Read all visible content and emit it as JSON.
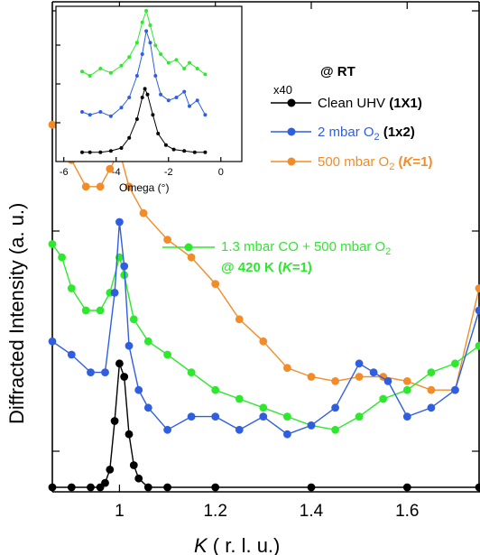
{
  "chart_data": [
    {
      "type": "scatter",
      "role": "main",
      "title": "",
      "xlabel_italic": "K",
      "xlabel_rest": " ( r. l. u.)",
      "ylabel": "Diffracted Intensity  (a. u.)",
      "xlim": [
        0.86,
        1.75
      ],
      "x_ticks": [
        1,
        1.2,
        1.4,
        1.6
      ],
      "x_tick_labels": [
        "1",
        "1.2",
        "1.4",
        "1.6"
      ],
      "y_tick_labels_shown": false,
      "annotation": "@ RT",
      "series": [
        {
          "name": "Clean UHV",
          "label_bold": "(1X1)",
          "multiplier": "x40",
          "color": "#000000",
          "points": [
            [
              0.86,
              0.0
            ],
            [
              0.9,
              0.0
            ],
            [
              0.94,
              0.0
            ],
            [
              0.96,
              0.0
            ],
            [
              0.97,
              0.01
            ],
            [
              0.98,
              0.04
            ],
            [
              0.99,
              0.15
            ],
            [
              1.0,
              0.28
            ],
            [
              1.01,
              0.25
            ],
            [
              1.02,
              0.12
            ],
            [
              1.03,
              0.05
            ],
            [
              1.04,
              0.02
            ],
            [
              1.06,
              0.0
            ],
            [
              1.1,
              0.0
            ],
            [
              1.2,
              0.0
            ],
            [
              1.4,
              0.0
            ],
            [
              1.6,
              0.0
            ],
            [
              1.75,
              0.0
            ]
          ]
        },
        {
          "name": "2 mbar O",
          "name_sub": "2",
          "label_bold": "(1x2)",
          "color": "#2f5fe0",
          "points": [
            [
              0.86,
              0.33
            ],
            [
              0.9,
              0.3
            ],
            [
              0.94,
              0.26
            ],
            [
              0.97,
              0.26
            ],
            [
              0.99,
              0.44
            ],
            [
              1.0,
              0.6
            ],
            [
              1.01,
              0.5
            ],
            [
              1.02,
              0.32
            ],
            [
              1.04,
              0.22
            ],
            [
              1.06,
              0.18
            ],
            [
              1.1,
              0.13
            ],
            [
              1.15,
              0.16
            ],
            [
              1.2,
              0.16
            ],
            [
              1.25,
              0.13
            ],
            [
              1.3,
              0.16
            ],
            [
              1.35,
              0.12
            ],
            [
              1.4,
              0.14
            ],
            [
              1.45,
              0.18
            ],
            [
              1.5,
              0.28
            ],
            [
              1.53,
              0.26
            ],
            [
              1.56,
              0.24
            ],
            [
              1.6,
              0.16
            ],
            [
              1.65,
              0.18
            ],
            [
              1.7,
              0.22
            ],
            [
              1.75,
              0.4
            ]
          ]
        },
        {
          "name": "500 mbar O",
          "name_sub": "2",
          "label_bold_prefix": "(",
          "label_bold_italic": "K",
          "label_bold_suffix": "=1)",
          "color": "#f28c28",
          "points": [
            [
              0.86,
              0.82
            ],
            [
              0.88,
              0.8
            ],
            [
              0.9,
              0.74
            ],
            [
              0.93,
              0.68
            ],
            [
              0.96,
              0.68
            ],
            [
              0.98,
              0.72
            ],
            [
              1.0,
              0.76
            ],
            [
              1.02,
              0.68
            ],
            [
              1.05,
              0.62
            ],
            [
              1.1,
              0.56
            ],
            [
              1.15,
              0.52
            ],
            [
              1.2,
              0.46
            ],
            [
              1.25,
              0.38
            ],
            [
              1.3,
              0.33
            ],
            [
              1.35,
              0.27
            ],
            [
              1.4,
              0.25
            ],
            [
              1.45,
              0.24
            ],
            [
              1.5,
              0.25
            ],
            [
              1.55,
              0.25
            ],
            [
              1.6,
              0.24
            ],
            [
              1.65,
              0.22
            ],
            [
              1.7,
              0.22
            ],
            [
              1.75,
              0.45
            ]
          ]
        },
        {
          "name": "1.3  mbar CO + 500 mbar O",
          "name_sub": "2",
          "label_line2_prefix": "@ 420 K (",
          "label_line2_italic": "K",
          "label_line2_suffix": "=1)",
          "color": "#2ee82e",
          "points": [
            [
              0.86,
              0.55
            ],
            [
              0.88,
              0.52
            ],
            [
              0.9,
              0.45
            ],
            [
              0.93,
              0.4
            ],
            [
              0.96,
              0.4
            ],
            [
              0.98,
              0.44
            ],
            [
              1.0,
              0.52
            ],
            [
              1.01,
              0.48
            ],
            [
              1.03,
              0.38
            ],
            [
              1.06,
              0.33
            ],
            [
              1.1,
              0.3
            ],
            [
              1.15,
              0.26
            ],
            [
              1.2,
              0.22
            ],
            [
              1.25,
              0.2
            ],
            [
              1.3,
              0.18
            ],
            [
              1.35,
              0.16
            ],
            [
              1.4,
              0.14
            ],
            [
              1.45,
              0.13
            ],
            [
              1.5,
              0.16
            ],
            [
              1.55,
              0.2
            ],
            [
              1.6,
              0.22
            ],
            [
              1.65,
              0.26
            ],
            [
              1.7,
              0.28
            ],
            [
              1.75,
              0.32
            ]
          ]
        }
      ]
    },
    {
      "type": "line",
      "role": "inset",
      "xlabel": "Omega (°)",
      "xlim": [
        -6.3,
        0.8
      ],
      "x_ticks": [
        -6,
        -4,
        -2,
        0
      ],
      "x_tick_labels": [
        "-6",
        "-4",
        "-2",
        "0"
      ],
      "y_tick_labels_shown": false,
      "series": [
        {
          "name": "Clean UHV",
          "color": "#000000",
          "points": [
            [
              -5.3,
              0.02
            ],
            [
              -5.0,
              0.02
            ],
            [
              -4.6,
              0.02
            ],
            [
              -4.2,
              0.03
            ],
            [
              -3.8,
              0.05
            ],
            [
              -3.5,
              0.12
            ],
            [
              -3.2,
              0.25
            ],
            [
              -3.0,
              0.4
            ],
            [
              -2.9,
              0.46
            ],
            [
              -2.8,
              0.42
            ],
            [
              -2.6,
              0.28
            ],
            [
              -2.4,
              0.15
            ],
            [
              -2.1,
              0.07
            ],
            [
              -1.8,
              0.04
            ],
            [
              -1.4,
              0.03
            ],
            [
              -1.0,
              0.02
            ],
            [
              -0.6,
              0.02
            ]
          ]
        },
        {
          "name": "2 mbar O2",
          "color": "#2f5fe0",
          "points": [
            [
              -5.3,
              0.3
            ],
            [
              -5.0,
              0.28
            ],
            [
              -4.6,
              0.3
            ],
            [
              -4.2,
              0.27
            ],
            [
              -3.8,
              0.33
            ],
            [
              -3.5,
              0.4
            ],
            [
              -3.2,
              0.55
            ],
            [
              -3.0,
              0.7
            ],
            [
              -2.85,
              0.86
            ],
            [
              -2.7,
              0.78
            ],
            [
              -2.5,
              0.55
            ],
            [
              -2.3,
              0.42
            ],
            [
              -2.0,
              0.38
            ],
            [
              -1.7,
              0.4
            ],
            [
              -1.4,
              0.44
            ],
            [
              -1.2,
              0.34
            ],
            [
              -0.9,
              0.38
            ],
            [
              -0.6,
              0.28
            ]
          ]
        },
        {
          "name": "1.3 mbar CO + 500 mbar O2",
          "color": "#2ee82e",
          "points": [
            [
              -5.3,
              0.58
            ],
            [
              -5.0,
              0.55
            ],
            [
              -4.6,
              0.6
            ],
            [
              -4.2,
              0.57
            ],
            [
              -3.8,
              0.62
            ],
            [
              -3.5,
              0.68
            ],
            [
              -3.2,
              0.78
            ],
            [
              -3.0,
              0.92
            ],
            [
              -2.85,
              1.0
            ],
            [
              -2.7,
              0.9
            ],
            [
              -2.5,
              0.76
            ],
            [
              -2.3,
              0.7
            ],
            [
              -2.0,
              0.64
            ],
            [
              -1.7,
              0.66
            ],
            [
              -1.4,
              0.6
            ],
            [
              -1.2,
              0.64
            ],
            [
              -0.9,
              0.6
            ],
            [
              -0.6,
              0.56
            ]
          ]
        }
      ]
    }
  ]
}
